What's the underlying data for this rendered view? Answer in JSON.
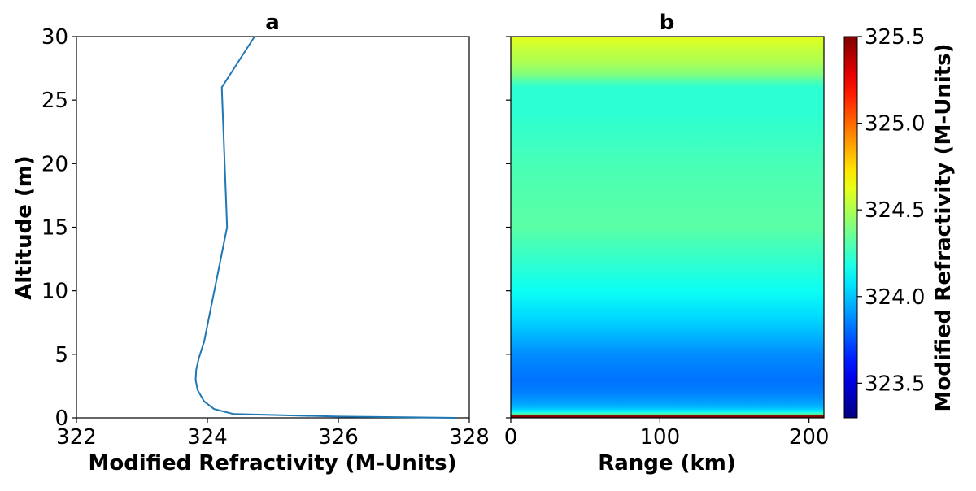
{
  "chart_data": [
    {
      "type": "line",
      "panel": "a",
      "title": "a",
      "xlabel": "Modified Refractivity (M-Units)",
      "ylabel": "Altitude (m)",
      "xlim": [
        322,
        328
      ],
      "ylim": [
        0,
        30
      ],
      "xticks": [
        "322",
        "324",
        "326",
        "328"
      ],
      "yticks": [
        "0",
        "5",
        "10",
        "15",
        "20",
        "25",
        "30"
      ],
      "line_color": "#1f77b4",
      "series": [
        {
          "x": [
            327.8,
            326.0,
            324.4,
            324.1,
            323.95,
            323.85,
            323.82,
            323.83,
            323.87,
            323.95,
            324.3,
            324.22,
            324.72
          ],
          "y": [
            0.0,
            0.1,
            0.3,
            0.7,
            1.3,
            2.2,
            3.0,
            3.8,
            4.7,
            6.0,
            15.0,
            26.0,
            30.0
          ]
        }
      ]
    },
    {
      "type": "heatmap",
      "panel": "b",
      "title": "b",
      "xlabel": "Range (km)",
      "xlim": [
        0,
        210
      ],
      "ylim": [
        0,
        30
      ],
      "xticks": [
        "0",
        "100",
        "200"
      ],
      "colormap": "jet",
      "colorbar": {
        "label": "Modified Refractivity (M-Units)",
        "range": [
          323.3,
          325.5
        ],
        "ticks": [
          "323.5",
          "324.0",
          "324.5",
          "325.0",
          "325.5"
        ]
      },
      "profile": {
        "altitude": [
          0.0,
          0.15,
          0.3,
          0.5,
          0.8,
          1.2,
          2.0,
          3.0,
          4.0,
          5.0,
          6.0,
          8.0,
          10.0,
          12.0,
          15.0,
          18.0,
          20.0,
          22.0,
          24.0,
          26.0,
          26.5,
          27.0,
          28.0,
          29.0,
          30.0
        ],
        "value": [
          325.5,
          325.5,
          324.3,
          324.1,
          323.98,
          323.92,
          323.85,
          323.82,
          323.85,
          323.88,
          323.94,
          324.05,
          324.15,
          324.22,
          324.32,
          324.3,
          324.28,
          324.25,
          324.22,
          324.22,
          324.3,
          324.4,
          324.5,
          324.55,
          324.62
        ]
      }
    }
  ]
}
